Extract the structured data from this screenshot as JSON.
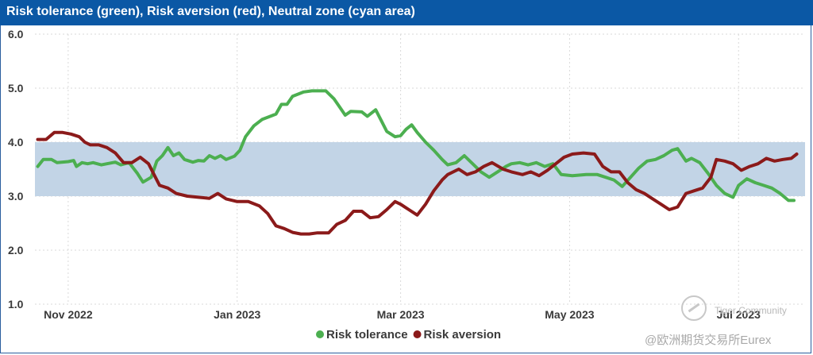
{
  "title": "Risk tolerance (green), Risk aversion (red), Neutral zone (cyan area)",
  "watermark": {
    "brand": "Tiger Community",
    "handle": "@欧洲期货交易所Eurex"
  },
  "colors": {
    "header_bg": "#0b58a5",
    "tolerance": "#4caf50",
    "aversion": "#8b1a1a",
    "neutral_band": "#c2d4e6",
    "grid": "#d9d9d9"
  },
  "chart_data": {
    "type": "line",
    "title": "Risk tolerance (green), Risk aversion (red), Neutral zone (cyan area)",
    "xlabel": "",
    "ylabel": "",
    "x_range": [
      "2022-10-20",
      "2023-07-25"
    ],
    "ylim": [
      1.0,
      6.0
    ],
    "y_ticks": [
      "1.0",
      "2.0",
      "3.0",
      "4.0",
      "5.0",
      "6.0"
    ],
    "x_ticks": [
      {
        "date": "2022-11-01",
        "label": "Nov 2022"
      },
      {
        "date": "2023-01-01",
        "label": "Jan 2023"
      },
      {
        "date": "2023-03-01",
        "label": "Mar 2023"
      },
      {
        "date": "2023-05-01",
        "label": "May 2023"
      },
      {
        "date": "2023-07-01",
        "label": "Jul 2023"
      }
    ],
    "grid": true,
    "neutral_zone": {
      "label": "Neutral zone",
      "from": 3.0,
      "to": 4.0
    },
    "legend": {
      "position": "bottom-center",
      "entries": [
        "Risk tolerance",
        "Risk aversion"
      ]
    },
    "series": [
      {
        "name": "Risk tolerance",
        "color": "#4caf50",
        "points": [
          [
            "2022-10-21",
            3.55
          ],
          [
            "2022-10-23",
            3.68
          ],
          [
            "2022-10-26",
            3.68
          ],
          [
            "2022-10-28",
            3.62
          ],
          [
            "2022-11-01",
            3.64
          ],
          [
            "2022-11-03",
            3.66
          ],
          [
            "2022-11-04",
            3.55
          ],
          [
            "2022-11-06",
            3.62
          ],
          [
            "2022-11-08",
            3.6
          ],
          [
            "2022-11-10",
            3.62
          ],
          [
            "2022-11-13",
            3.58
          ],
          [
            "2022-11-15",
            3.6
          ],
          [
            "2022-11-18",
            3.63
          ],
          [
            "2022-11-20",
            3.58
          ],
          [
            "2022-11-23",
            3.62
          ],
          [
            "2022-11-26",
            3.42
          ],
          [
            "2022-11-28",
            3.26
          ],
          [
            "2022-12-01",
            3.35
          ],
          [
            "2022-12-03",
            3.65
          ],
          [
            "2022-12-05",
            3.75
          ],
          [
            "2022-12-07",
            3.9
          ],
          [
            "2022-12-09",
            3.75
          ],
          [
            "2022-12-11",
            3.8
          ],
          [
            "2022-12-13",
            3.68
          ],
          [
            "2022-12-16",
            3.63
          ],
          [
            "2022-12-18",
            3.66
          ],
          [
            "2022-12-20",
            3.65
          ],
          [
            "2022-12-22",
            3.75
          ],
          [
            "2022-12-24",
            3.7
          ],
          [
            "2022-12-26",
            3.75
          ],
          [
            "2022-12-28",
            3.68
          ],
          [
            "2022-12-31",
            3.74
          ],
          [
            "2023-01-02",
            3.85
          ],
          [
            "2023-01-04",
            4.1
          ],
          [
            "2023-01-07",
            4.3
          ],
          [
            "2023-01-10",
            4.42
          ],
          [
            "2023-01-13",
            4.48
          ],
          [
            "2023-01-15",
            4.52
          ],
          [
            "2023-01-17",
            4.7
          ],
          [
            "2023-01-19",
            4.7
          ],
          [
            "2023-01-21",
            4.85
          ],
          [
            "2023-01-25",
            4.93
          ],
          [
            "2023-01-28",
            4.95
          ],
          [
            "2023-02-02",
            4.95
          ],
          [
            "2023-02-05",
            4.8
          ],
          [
            "2023-02-07",
            4.65
          ],
          [
            "2023-02-09",
            4.5
          ],
          [
            "2023-02-11",
            4.57
          ],
          [
            "2023-02-15",
            4.56
          ],
          [
            "2023-02-17",
            4.48
          ],
          [
            "2023-02-20",
            4.6
          ],
          [
            "2023-02-22",
            4.4
          ],
          [
            "2023-02-24",
            4.2
          ],
          [
            "2023-02-27",
            4.1
          ],
          [
            "2023-03-01",
            4.12
          ],
          [
            "2023-03-03",
            4.24
          ],
          [
            "2023-03-05",
            4.32
          ],
          [
            "2023-03-07",
            4.18
          ],
          [
            "2023-03-10",
            4.0
          ],
          [
            "2023-03-13",
            3.85
          ],
          [
            "2023-03-16",
            3.68
          ],
          [
            "2023-03-18",
            3.58
          ],
          [
            "2023-03-21",
            3.62
          ],
          [
            "2023-03-24",
            3.75
          ],
          [
            "2023-03-27",
            3.6
          ],
          [
            "2023-03-30",
            3.45
          ],
          [
            "2023-04-02",
            3.35
          ],
          [
            "2023-04-05",
            3.45
          ],
          [
            "2023-04-08",
            3.55
          ],
          [
            "2023-04-10",
            3.6
          ],
          [
            "2023-04-13",
            3.62
          ],
          [
            "2023-04-16",
            3.58
          ],
          [
            "2023-04-19",
            3.62
          ],
          [
            "2023-04-22",
            3.55
          ],
          [
            "2023-04-25",
            3.6
          ],
          [
            "2023-04-28",
            3.4
          ],
          [
            "2023-05-02",
            3.38
          ],
          [
            "2023-05-07",
            3.4
          ],
          [
            "2023-05-11",
            3.4
          ],
          [
            "2023-05-14",
            3.35
          ],
          [
            "2023-05-17",
            3.3
          ],
          [
            "2023-05-20",
            3.18
          ],
          [
            "2023-05-23",
            3.35
          ],
          [
            "2023-05-26",
            3.52
          ],
          [
            "2023-05-29",
            3.65
          ],
          [
            "2023-06-01",
            3.68
          ],
          [
            "2023-06-04",
            3.75
          ],
          [
            "2023-06-07",
            3.85
          ],
          [
            "2023-06-09",
            3.88
          ],
          [
            "2023-06-12",
            3.65
          ],
          [
            "2023-06-14",
            3.7
          ],
          [
            "2023-06-17",
            3.62
          ],
          [
            "2023-06-20",
            3.42
          ],
          [
            "2023-06-23",
            3.2
          ],
          [
            "2023-06-26",
            3.05
          ],
          [
            "2023-06-29",
            2.98
          ],
          [
            "2023-07-01",
            3.2
          ],
          [
            "2023-07-04",
            3.32
          ],
          [
            "2023-07-07",
            3.25
          ],
          [
            "2023-07-10",
            3.2
          ],
          [
            "2023-07-13",
            3.15
          ],
          [
            "2023-07-16",
            3.05
          ],
          [
            "2023-07-19",
            2.92
          ],
          [
            "2023-07-21",
            2.92
          ]
        ]
      },
      {
        "name": "Risk aversion",
        "color": "#8b1a1a",
        "points": [
          [
            "2022-10-21",
            4.05
          ],
          [
            "2022-10-24",
            4.05
          ],
          [
            "2022-10-27",
            4.18
          ],
          [
            "2022-10-30",
            4.18
          ],
          [
            "2022-11-02",
            4.15
          ],
          [
            "2022-11-05",
            4.1
          ],
          [
            "2022-11-07",
            4.0
          ],
          [
            "2022-11-09",
            3.95
          ],
          [
            "2022-11-12",
            3.95
          ],
          [
            "2022-11-15",
            3.9
          ],
          [
            "2022-11-18",
            3.8
          ],
          [
            "2022-11-21",
            3.62
          ],
          [
            "2022-11-24",
            3.62
          ],
          [
            "2022-11-27",
            3.72
          ],
          [
            "2022-11-30",
            3.6
          ],
          [
            "2022-12-02",
            3.4
          ],
          [
            "2022-12-04",
            3.2
          ],
          [
            "2022-12-07",
            3.15
          ],
          [
            "2022-12-10",
            3.05
          ],
          [
            "2022-12-14",
            3.0
          ],
          [
            "2022-12-18",
            2.98
          ],
          [
            "2022-12-22",
            2.96
          ],
          [
            "2022-12-25",
            3.05
          ],
          [
            "2022-12-28",
            2.95
          ],
          [
            "2023-01-01",
            2.9
          ],
          [
            "2023-01-05",
            2.9
          ],
          [
            "2023-01-09",
            2.82
          ],
          [
            "2023-01-12",
            2.68
          ],
          [
            "2023-01-15",
            2.45
          ],
          [
            "2023-01-18",
            2.4
          ],
          [
            "2023-01-21",
            2.33
          ],
          [
            "2023-01-24",
            2.3
          ],
          [
            "2023-01-27",
            2.3
          ],
          [
            "2023-01-30",
            2.32
          ],
          [
            "2023-02-03",
            2.32
          ],
          [
            "2023-02-06",
            2.48
          ],
          [
            "2023-02-09",
            2.55
          ],
          [
            "2023-02-12",
            2.72
          ],
          [
            "2023-02-15",
            2.72
          ],
          [
            "2023-02-18",
            2.6
          ],
          [
            "2023-02-21",
            2.62
          ],
          [
            "2023-02-24",
            2.75
          ],
          [
            "2023-02-27",
            2.9
          ],
          [
            "2023-03-01",
            2.85
          ],
          [
            "2023-03-04",
            2.75
          ],
          [
            "2023-03-07",
            2.65
          ],
          [
            "2023-03-10",
            2.85
          ],
          [
            "2023-03-13",
            3.1
          ],
          [
            "2023-03-16",
            3.3
          ],
          [
            "2023-03-18",
            3.4
          ],
          [
            "2023-03-22",
            3.5
          ],
          [
            "2023-03-25",
            3.4
          ],
          [
            "2023-03-28",
            3.45
          ],
          [
            "2023-03-31",
            3.55
          ],
          [
            "2023-04-03",
            3.62
          ],
          [
            "2023-04-07",
            3.5
          ],
          [
            "2023-04-10",
            3.45
          ],
          [
            "2023-04-14",
            3.4
          ],
          [
            "2023-04-17",
            3.45
          ],
          [
            "2023-04-20",
            3.38
          ],
          [
            "2023-04-23",
            3.48
          ],
          [
            "2023-04-26",
            3.6
          ],
          [
            "2023-04-29",
            3.72
          ],
          [
            "2023-05-02",
            3.78
          ],
          [
            "2023-05-06",
            3.8
          ],
          [
            "2023-05-10",
            3.78
          ],
          [
            "2023-05-13",
            3.55
          ],
          [
            "2023-05-16",
            3.45
          ],
          [
            "2023-05-19",
            3.45
          ],
          [
            "2023-05-22",
            3.25
          ],
          [
            "2023-05-25",
            3.12
          ],
          [
            "2023-05-28",
            3.05
          ],
          [
            "2023-05-31",
            2.95
          ],
          [
            "2023-06-03",
            2.85
          ],
          [
            "2023-06-06",
            2.75
          ],
          [
            "2023-06-09",
            2.8
          ],
          [
            "2023-06-12",
            3.05
          ],
          [
            "2023-06-15",
            3.1
          ],
          [
            "2023-06-18",
            3.15
          ],
          [
            "2023-06-21",
            3.35
          ],
          [
            "2023-06-23",
            3.68
          ],
          [
            "2023-06-26",
            3.65
          ],
          [
            "2023-06-29",
            3.6
          ],
          [
            "2023-07-02",
            3.48
          ],
          [
            "2023-07-05",
            3.55
          ],
          [
            "2023-07-08",
            3.6
          ],
          [
            "2023-07-11",
            3.7
          ],
          [
            "2023-07-14",
            3.65
          ],
          [
            "2023-07-17",
            3.68
          ],
          [
            "2023-07-20",
            3.7
          ],
          [
            "2023-07-22",
            3.78
          ]
        ]
      }
    ]
  }
}
